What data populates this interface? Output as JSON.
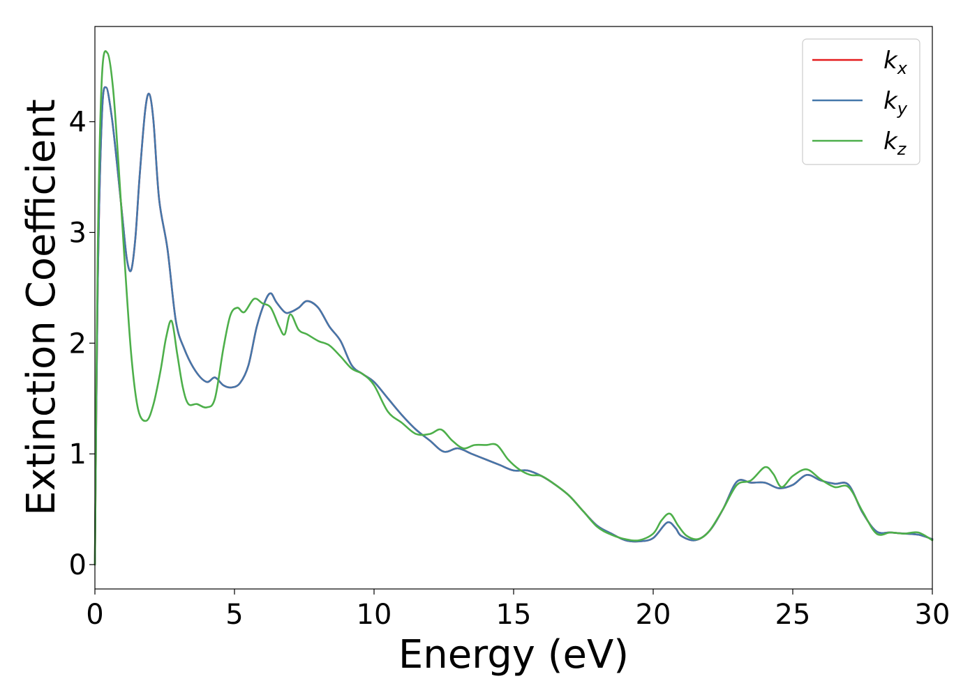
{
  "chart_data": {
    "type": "line",
    "xlabel": "Energy (eV)",
    "ylabel": "Extinction Coefficient",
    "xlim": [
      0,
      30
    ],
    "ylim": [
      -0.22,
      4.86
    ],
    "xticks": [
      0,
      5,
      10,
      15,
      20,
      25,
      30
    ],
    "yticks": [
      0,
      1,
      2,
      3,
      4
    ],
    "grid": false,
    "legend": "top-right",
    "series": [
      {
        "name": "k_x",
        "label_main": "k",
        "label_sub": "x",
        "color": "#e41a1c",
        "x": [
          0,
          0.1,
          0.25,
          0.4,
          0.6,
          0.8,
          1.0,
          1.15,
          1.3,
          1.45,
          1.6,
          1.8,
          1.95,
          2.1,
          2.3,
          2.6,
          2.9,
          3.2,
          3.6,
          4.0,
          4.3,
          4.6,
          4.9,
          5.2,
          5.5,
          5.8,
          6.1,
          6.3,
          6.5,
          6.8,
          7.0,
          7.3,
          7.6,
          8.0,
          8.4,
          8.8,
          9.2,
          9.6,
          10.0,
          10.5,
          11.0,
          11.5,
          12.0,
          12.5,
          13.0,
          13.5,
          14.0,
          14.5,
          15.0,
          15.5,
          16.0,
          16.5,
          17.0,
          17.5,
          18.0,
          18.5,
          19.0,
          19.5,
          20.0,
          20.5,
          20.8,
          21.0,
          21.5,
          22.0,
          22.5,
          23.0,
          23.5,
          24.0,
          24.5,
          25.0,
          25.5,
          26.0,
          26.5,
          27.0,
          27.5,
          28.0,
          28.5,
          29.0,
          29.5,
          30.0
        ],
        "y": [
          0.0,
          2.5,
          4.05,
          4.31,
          4.05,
          3.6,
          3.1,
          2.75,
          2.66,
          2.95,
          3.5,
          4.1,
          4.25,
          4.0,
          3.3,
          2.85,
          2.2,
          1.95,
          1.75,
          1.65,
          1.69,
          1.62,
          1.6,
          1.64,
          1.8,
          2.15,
          2.38,
          2.45,
          2.37,
          2.28,
          2.28,
          2.32,
          2.38,
          2.32,
          2.15,
          2.02,
          1.8,
          1.72,
          1.65,
          1.5,
          1.35,
          1.22,
          1.12,
          1.02,
          1.05,
          1.0,
          0.95,
          0.9,
          0.85,
          0.85,
          0.8,
          0.72,
          0.62,
          0.48,
          0.35,
          0.28,
          0.22,
          0.21,
          0.24,
          0.38,
          0.33,
          0.26,
          0.22,
          0.3,
          0.5,
          0.75,
          0.74,
          0.74,
          0.69,
          0.72,
          0.81,
          0.76,
          0.73,
          0.72,
          0.47,
          0.3,
          0.29,
          0.28,
          0.27,
          0.23
        ]
      },
      {
        "name": "k_y",
        "label_main": "k",
        "label_sub": "y",
        "color": "#4477aa",
        "x": [
          0,
          0.1,
          0.25,
          0.4,
          0.6,
          0.8,
          1.0,
          1.15,
          1.3,
          1.45,
          1.6,
          1.8,
          1.95,
          2.1,
          2.3,
          2.6,
          2.9,
          3.2,
          3.6,
          4.0,
          4.3,
          4.6,
          4.9,
          5.2,
          5.5,
          5.8,
          6.1,
          6.3,
          6.5,
          6.8,
          7.0,
          7.3,
          7.6,
          8.0,
          8.4,
          8.8,
          9.2,
          9.6,
          10.0,
          10.5,
          11.0,
          11.5,
          12.0,
          12.5,
          13.0,
          13.5,
          14.0,
          14.5,
          15.0,
          15.5,
          16.0,
          16.5,
          17.0,
          17.5,
          18.0,
          18.5,
          19.0,
          19.5,
          20.0,
          20.5,
          20.8,
          21.0,
          21.5,
          22.0,
          22.5,
          23.0,
          23.5,
          24.0,
          24.5,
          25.0,
          25.5,
          26.0,
          26.5,
          27.0,
          27.5,
          28.0,
          28.5,
          29.0,
          29.5,
          30.0
        ],
        "y": [
          0.0,
          2.5,
          4.05,
          4.31,
          4.05,
          3.6,
          3.1,
          2.75,
          2.66,
          2.95,
          3.5,
          4.1,
          4.25,
          4.0,
          3.3,
          2.85,
          2.2,
          1.95,
          1.75,
          1.65,
          1.69,
          1.62,
          1.6,
          1.64,
          1.8,
          2.15,
          2.38,
          2.45,
          2.37,
          2.28,
          2.28,
          2.32,
          2.38,
          2.32,
          2.15,
          2.02,
          1.8,
          1.72,
          1.65,
          1.5,
          1.35,
          1.22,
          1.12,
          1.02,
          1.05,
          1.0,
          0.95,
          0.9,
          0.85,
          0.85,
          0.8,
          0.72,
          0.62,
          0.48,
          0.35,
          0.28,
          0.22,
          0.21,
          0.24,
          0.38,
          0.33,
          0.26,
          0.22,
          0.3,
          0.5,
          0.75,
          0.74,
          0.74,
          0.69,
          0.72,
          0.81,
          0.76,
          0.73,
          0.72,
          0.47,
          0.3,
          0.29,
          0.28,
          0.27,
          0.23
        ]
      },
      {
        "name": "k_z",
        "label_main": "k",
        "label_sub": "z",
        "color": "#4daf4a",
        "x": [
          0,
          0.1,
          0.25,
          0.45,
          0.65,
          0.85,
          1.05,
          1.3,
          1.55,
          1.85,
          2.1,
          2.35,
          2.55,
          2.75,
          2.95,
          3.15,
          3.35,
          3.65,
          4.0,
          4.3,
          4.6,
          4.85,
          5.1,
          5.35,
          5.7,
          6.0,
          6.3,
          6.6,
          6.8,
          7.0,
          7.3,
          7.6,
          8.0,
          8.4,
          8.8,
          9.2,
          9.6,
          10.0,
          10.5,
          11.0,
          11.5,
          12.0,
          12.4,
          12.8,
          13.2,
          13.6,
          14.0,
          14.4,
          14.8,
          15.2,
          15.6,
          16.0,
          16.5,
          17.0,
          17.5,
          18.0,
          18.5,
          19.0,
          19.5,
          20.0,
          20.3,
          20.6,
          20.9,
          21.2,
          21.6,
          22.0,
          22.5,
          23.0,
          23.5,
          24.0,
          24.3,
          24.6,
          25.0,
          25.5,
          26.0,
          26.5,
          27.0,
          27.5,
          28.0,
          28.5,
          29.0,
          29.5,
          30.0
        ],
        "y": [
          0.0,
          2.8,
          4.4,
          4.62,
          4.3,
          3.6,
          2.8,
          1.9,
          1.4,
          1.3,
          1.45,
          1.75,
          2.05,
          2.2,
          1.9,
          1.6,
          1.45,
          1.45,
          1.42,
          1.5,
          1.95,
          2.25,
          2.32,
          2.28,
          2.4,
          2.36,
          2.32,
          2.15,
          2.08,
          2.26,
          2.12,
          2.08,
          2.02,
          1.98,
          1.88,
          1.77,
          1.72,
          1.62,
          1.38,
          1.28,
          1.18,
          1.18,
          1.22,
          1.12,
          1.05,
          1.08,
          1.08,
          1.08,
          0.95,
          0.86,
          0.81,
          0.8,
          0.72,
          0.62,
          0.48,
          0.34,
          0.27,
          0.23,
          0.22,
          0.28,
          0.4,
          0.46,
          0.35,
          0.26,
          0.23,
          0.3,
          0.5,
          0.72,
          0.76,
          0.88,
          0.82,
          0.7,
          0.8,
          0.86,
          0.77,
          0.7,
          0.7,
          0.48,
          0.28,
          0.29,
          0.28,
          0.29,
          0.22
        ]
      }
    ]
  }
}
